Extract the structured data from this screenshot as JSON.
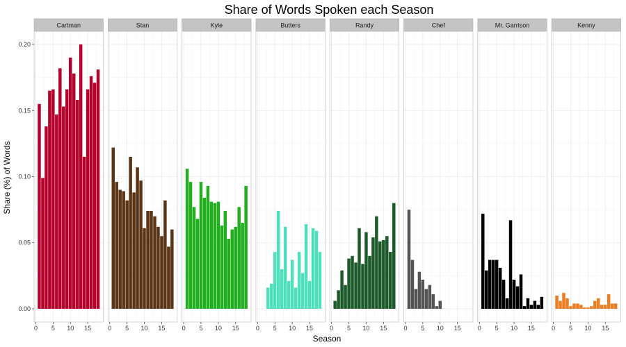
{
  "chart_data": {
    "type": "bar",
    "title": "Share of Words Spoken each Season",
    "xlabel": "Season",
    "ylabel": "Share (%) of Words",
    "xlim": [
      -0.5,
      19.5
    ],
    "ylim": [
      -0.01,
      0.21
    ],
    "x_ticks": [
      0,
      5,
      10,
      15
    ],
    "y_ticks": [
      0.0,
      0.05,
      0.1,
      0.15,
      0.2
    ],
    "y_tick_labels": [
      "0.00",
      "0.05",
      "0.10",
      "0.15",
      "0.20"
    ],
    "grid": true,
    "legend": "none",
    "x": [
      1,
      2,
      3,
      4,
      5,
      6,
      7,
      8,
      9,
      10,
      11,
      12,
      13,
      14,
      15,
      16,
      17,
      18
    ],
    "panels": [
      {
        "name": "Cartman",
        "color": "#b5002b",
        "values": [
          0.155,
          0.099,
          0.138,
          0.165,
          0.166,
          0.147,
          0.182,
          0.153,
          0.166,
          0.19,
          0.178,
          0.158,
          0.2,
          0.115,
          0.166,
          0.176,
          0.171,
          0.181
        ]
      },
      {
        "name": "Stan",
        "color": "#5b3415",
        "values": [
          0.122,
          0.096,
          0.09,
          0.089,
          0.082,
          0.115,
          0.088,
          0.107,
          0.097,
          0.061,
          0.074,
          0.074,
          0.07,
          0.062,
          0.055,
          0.082,
          0.047,
          0.06
        ]
      },
      {
        "name": "Kyle",
        "color": "#21ae1f",
        "values": [
          0.106,
          0.096,
          0.077,
          0.068,
          0.096,
          0.084,
          0.093,
          0.081,
          0.08,
          0.081,
          0.063,
          0.074,
          0.053,
          0.06,
          0.062,
          0.077,
          0.065,
          0.093
        ]
      },
      {
        "name": "Butters",
        "color": "#4ee0bc",
        "values": [
          null,
          null,
          0.016,
          0.019,
          0.043,
          0.074,
          0.03,
          0.062,
          0.021,
          0.037,
          0.016,
          0.043,
          0.027,
          0.064,
          0.021,
          0.061,
          0.059,
          0.043
        ]
      },
      {
        "name": "Randy",
        "color": "#1d5a2a",
        "values": [
          0.006,
          0.014,
          0.029,
          0.018,
          0.038,
          0.04,
          0.035,
          0.061,
          0.034,
          0.058,
          0.04,
          0.054,
          0.07,
          0.051,
          0.052,
          0.055,
          0.043,
          0.08
        ]
      },
      {
        "name": "Chef",
        "color": "#545454",
        "values": [
          0.075,
          0.037,
          0.015,
          0.028,
          0.022,
          0.015,
          0.018,
          0.011,
          0.002,
          0.006,
          null,
          null,
          null,
          null,
          null,
          null,
          null,
          null
        ]
      },
      {
        "name": "Mr. Garrison",
        "color": "#000000",
        "values": [
          0.072,
          0.029,
          0.037,
          0.037,
          0.037,
          0.031,
          0.022,
          0.008,
          0.067,
          0.022,
          0.017,
          0.026,
          0.002,
          0.008,
          0.003,
          0.006,
          0.003,
          0.009
        ]
      },
      {
        "name": "Kenny",
        "color": "#ee7c21",
        "values": [
          0.01,
          0.006,
          0.012,
          0.008,
          0.002,
          0.004,
          0.004,
          0.003,
          0.001,
          0.001,
          0.002,
          0.006,
          0.008,
          0.003,
          0.003,
          0.011,
          0.004,
          0.004
        ]
      }
    ]
  }
}
